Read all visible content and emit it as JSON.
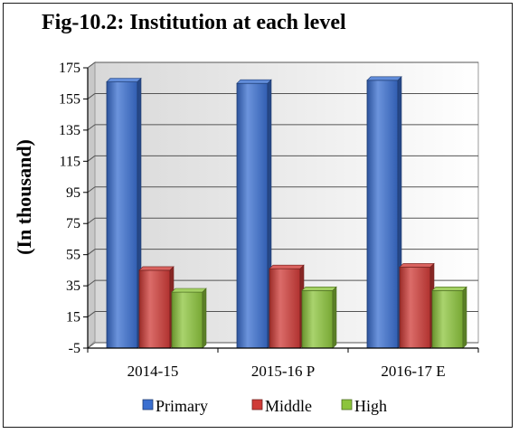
{
  "chart_data": {
    "type": "bar",
    "title": "Fig-10.2: Institution at each level",
    "ylabel": "(In thousand)",
    "xlabel": "",
    "categories": [
      "2014-15",
      "2015-16 P",
      "2016-17 E"
    ],
    "series": [
      {
        "name": "Primary",
        "values": [
          166,
          165,
          167
        ],
        "color": "#3a6fd0"
      },
      {
        "name": "Middle",
        "values": [
          45,
          46,
          47
        ],
        "color": "#cf3b37"
      },
      {
        "name": "High",
        "values": [
          31,
          32,
          32
        ],
        "color": "#8cc43c"
      }
    ],
    "ylim": [
      -5,
      175
    ],
    "yticks": [
      175,
      155,
      135,
      115,
      95,
      75,
      55,
      35,
      15,
      -5
    ],
    "grid": true,
    "legend_position": "bottom"
  }
}
